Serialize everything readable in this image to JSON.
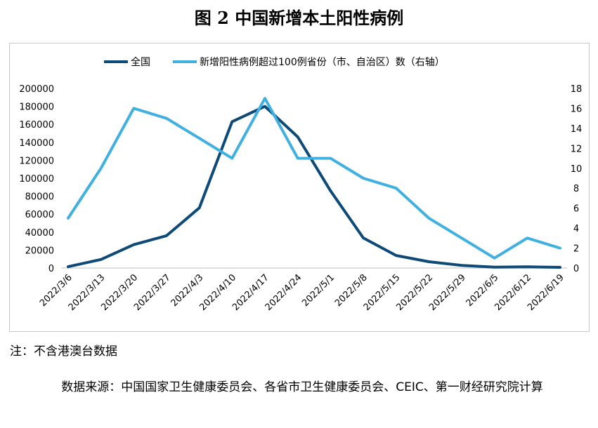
{
  "title": "图 2  中国新增本土阳性病例",
  "note": "注：不含港澳台数据",
  "source": "数据来源：中国国家卫生健康委员会、各省市卫生健康委员会、CEIC、第一财经研究院计算",
  "chart_data": {
    "type": "line",
    "x": [
      "2022/3/6",
      "2022/3/13",
      "2022/3/20",
      "2022/3/27",
      "2022/4/3",
      "2022/4/10",
      "2022/4/17",
      "2022/4/24",
      "2022/5/1",
      "2022/5/8",
      "2022/5/15",
      "2022/5/22",
      "2022/5/29",
      "2022/6/5",
      "2022/6/12",
      "2022/6/19"
    ],
    "series": [
      {
        "name": "全国",
        "axis": "left",
        "color": "#0e4a78",
        "values": [
          1500,
          9500,
          26000,
          36000,
          67000,
          163000,
          180000,
          146000,
          86000,
          33500,
          14000,
          7000,
          3000,
          1000,
          1300,
          800
        ]
      },
      {
        "name": "新增阳性病例超过100例省份（市、自治区）数（右轴）",
        "axis": "right",
        "color": "#3fb0e0",
        "values": [
          5,
          10,
          16,
          15,
          13,
          11,
          17,
          11,
          11,
          9,
          8,
          5,
          3,
          1,
          3,
          2
        ]
      }
    ],
    "y_left": {
      "min": 0,
      "max": 200000,
      "ticks": [
        "0",
        "20000",
        "40000",
        "60000",
        "80000",
        "100000",
        "120000",
        "140000",
        "160000",
        "180000",
        "200000"
      ]
    },
    "y_right": {
      "min": 0,
      "max": 18,
      "ticks": [
        "0",
        "2",
        "4",
        "6",
        "8",
        "10",
        "12",
        "14",
        "16",
        "18"
      ]
    },
    "legend": "top",
    "grid": false
  }
}
